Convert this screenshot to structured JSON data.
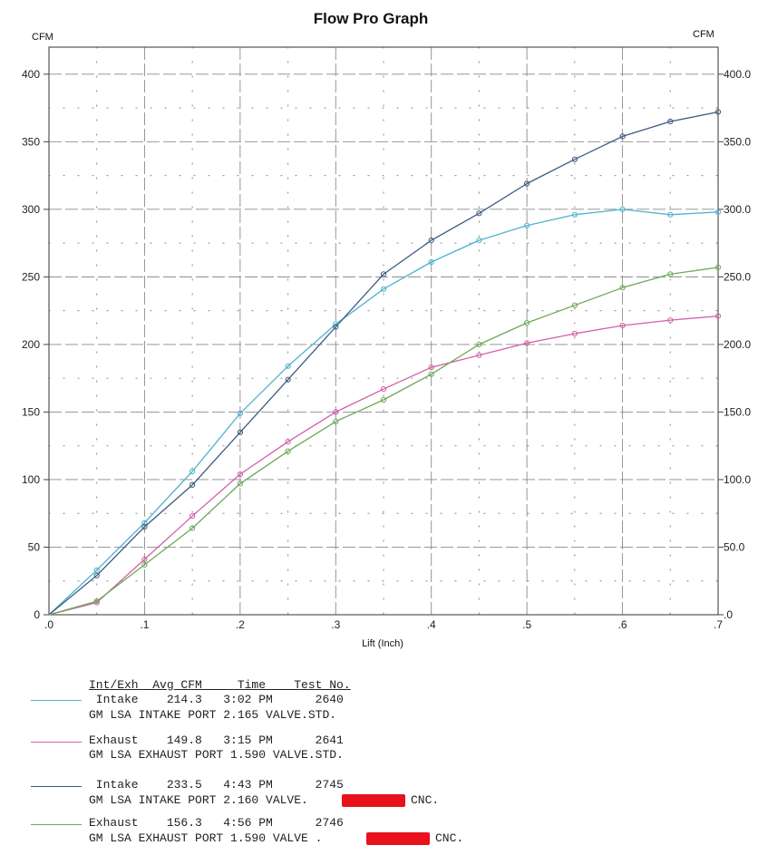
{
  "chart_data": {
    "type": "line",
    "title": "Flow Pro Graph",
    "xlabel": "Lift (Inch)",
    "ylabel_left": "CFM",
    "ylabel_right": "CFM",
    "xlim": [
      0,
      0.7
    ],
    "ylim": [
      0,
      420
    ],
    "x_ticks": [
      ".0",
      ".1",
      ".2",
      ".3",
      ".4",
      ".5",
      ".6",
      ".7"
    ],
    "y_ticks_left": [
      "0",
      "50",
      "100",
      "150",
      "200",
      "250",
      "300",
      "350",
      "400"
    ],
    "y_ticks_right": [
      ".0",
      "50.0",
      "100.0",
      "150.0",
      "200.0",
      "250.0",
      "300.0",
      "350.0",
      "400.0"
    ],
    "grid": true,
    "x": [
      0,
      0.05,
      0.1,
      0.15,
      0.2,
      0.25,
      0.3,
      0.35,
      0.4,
      0.45,
      0.5,
      0.55,
      0.6,
      0.65,
      0.7
    ],
    "series": [
      {
        "color": "#4fb3cf",
        "values": [
          0,
          33,
          68,
          106,
          149,
          184,
          215,
          241,
          261,
          277,
          288,
          296,
          300,
          296,
          298
        ]
      },
      {
        "color": "#d45fa8",
        "values": [
          0,
          9,
          41,
          73,
          104,
          128,
          150,
          167,
          183,
          192,
          201,
          208,
          214,
          218,
          221
        ]
      },
      {
        "color": "#3c5a80",
        "values": [
          0,
          29,
          65,
          96,
          135,
          174,
          213,
          252,
          277,
          297,
          319,
          337,
          354,
          365,
          372
        ]
      },
      {
        "color": "#6aaa56",
        "values": [
          0,
          10,
          37,
          64,
          97,
          121,
          143,
          159,
          178,
          200,
          216,
          229,
          242,
          252,
          257
        ]
      }
    ]
  },
  "legend": {
    "header": "Int/Exh  Avg CFM     Time    Test No.",
    "entries": [
      {
        "color": "#4fb3cf",
        "line1": " Intake    214.3   3:02 PM      2640",
        "line2": "GM LSA INTAKE PORT 2.165 VALVE.STD."
      },
      {
        "color": "#d45fa8",
        "line1": "Exhaust    149.8   3:15 PM      2641",
        "line2": "GM LSA EXHAUST PORT 1.590 VALVE.STD."
      },
      {
        "color": "#3c5a80",
        "line1": " Intake    233.5   4:43 PM      2745",
        "line2a": "GM LSA INTAKE PORT 2.160 VALVE.",
        "line2b": "CNC."
      },
      {
        "color": "#6aaa56",
        "line1": "Exhaust    156.3   4:56 PM      2746",
        "line2a": "GM LSA EXHAUST PORT 1.590 VALVE .",
        "line2b": "CNC."
      }
    ]
  }
}
